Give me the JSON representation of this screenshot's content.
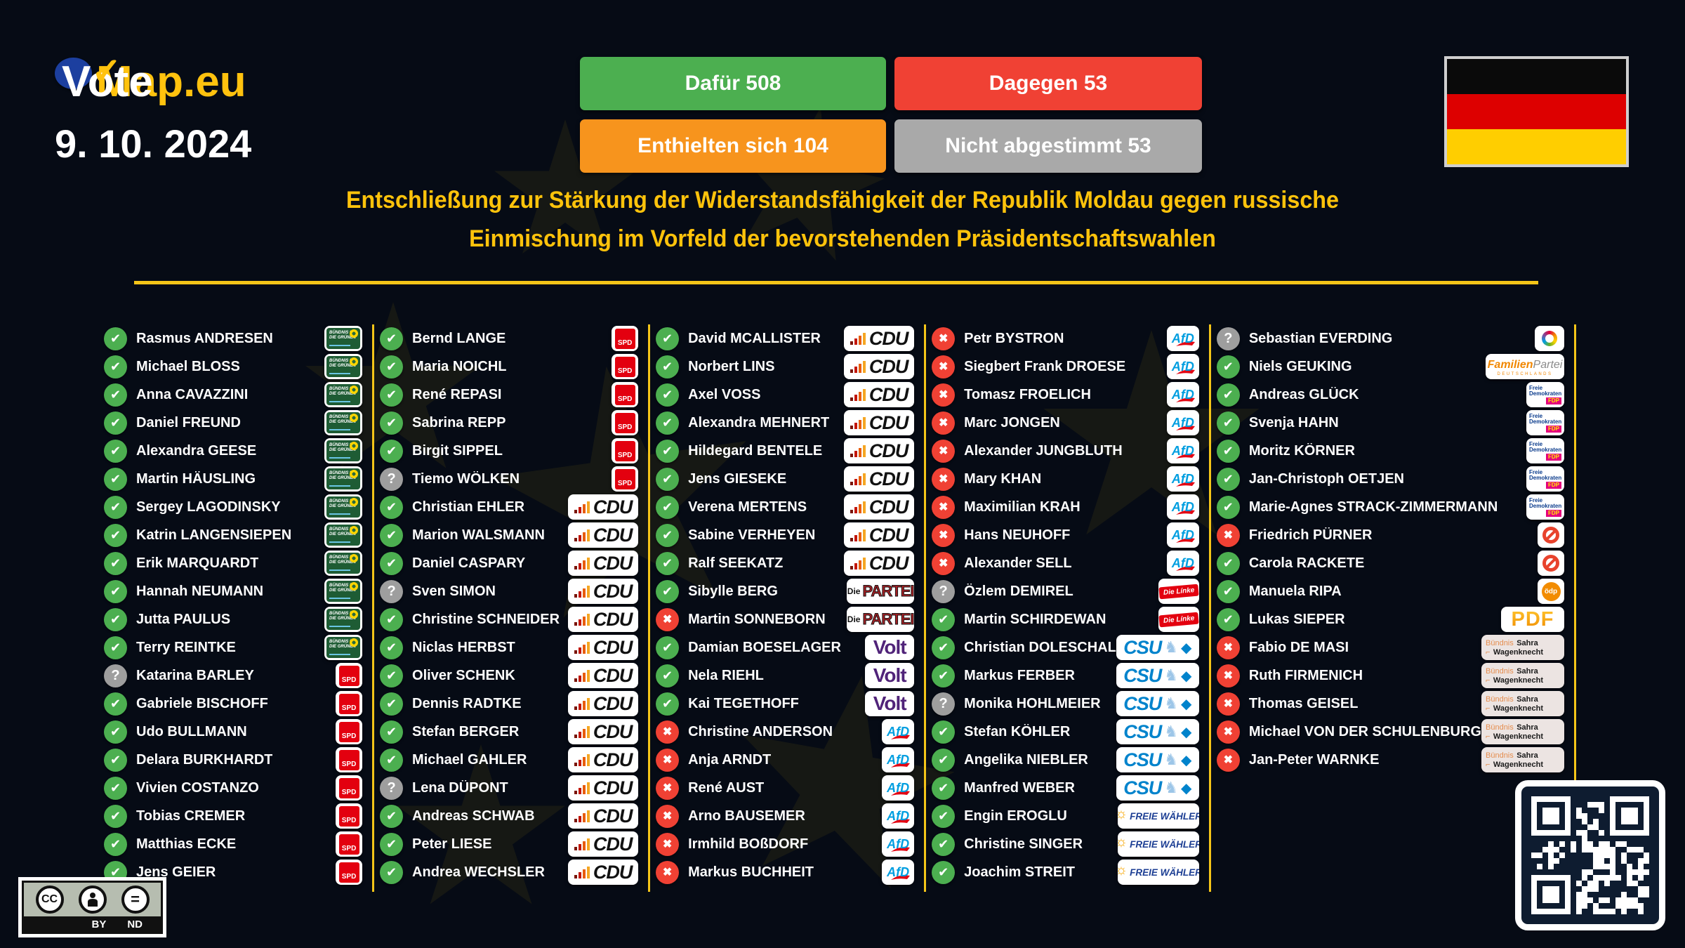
{
  "header": {
    "logo_vote": "Vote",
    "logo_map": "Map.eu",
    "logo_check": "✓",
    "date": "9. 10. 2024",
    "title_line1": "Entschließung zur Stärkung der Widerstandsfähigkeit der Republik Moldau gegen russische",
    "title_line2": "Einmischung im Vorfeld der bevorstehenden Präsidentschaftswahlen",
    "buttons": [
      {
        "id": "for",
        "label": "Dafür 508",
        "color": "#4caf50"
      },
      {
        "id": "against",
        "label": "Dagegen 53",
        "color": "#f04134"
      },
      {
        "id": "abstain",
        "label": "Enthielten sich 104",
        "color": "#f7941d"
      },
      {
        "id": "novote",
        "label": "Nicht abgestimmt 53",
        "color": "#a9a9a9"
      }
    ],
    "flag": {
      "country": "Deutschland",
      "stripes": [
        "#0a0a0a",
        "#dd0000",
        "#ffce00"
      ]
    }
  },
  "vote_icons": {
    "for": "✔",
    "against": "✖",
    "none": "?"
  },
  "parties": {
    "gruene": {
      "name": "Bündnis 90/Die Grünen",
      "line1": "BÜNDNIS 90",
      "line2": "DIE GRÜNEN"
    },
    "spd": {
      "name": "SPD",
      "text": "SPD"
    },
    "cdu": {
      "name": "CDU",
      "text": "CDU"
    },
    "csu": {
      "name": "CSU",
      "text": "CSU",
      "diamond": "◆",
      "lion": "♞"
    },
    "afd": {
      "name": "AfD",
      "text": "AfD"
    },
    "linke": {
      "name": "Die Linke",
      "text": "Die Línke"
    },
    "partei": {
      "name": "Die PARTEI",
      "small": "Die",
      "text": "PARTEI"
    },
    "volt": {
      "name": "Volt",
      "text": "Volt"
    },
    "fw": {
      "name": "Freie Wähler",
      "sun": "☼",
      "text": "FREIE WÄHLER"
    },
    "fdp": {
      "name": "Freie Demokraten / FDP",
      "line1": "Freie",
      "line2": "Demokraten",
      "badge": "FDP"
    },
    "familie": {
      "name": "Familien-Partei Deutschlands",
      "text1": "Familien",
      "text2": "Partei",
      "text3": "DEUTSCHLANDS"
    },
    "tierschutz": {
      "name": "Tierschutzpartei"
    },
    "parteilos": {
      "name": "parteilos"
    },
    "oedp": {
      "name": "ödp",
      "text": "ödp"
    },
    "pdf": {
      "name": "Partei der Fortschritt",
      "text": "PDF"
    },
    "bsw": {
      "name": "Bündnis Sahra Wagenknecht",
      "text1": "Bündnis",
      "text2": "Sahra",
      "text3": "Wagenknecht",
      "mark": "⌐"
    }
  },
  "columns": [
    [
      {
        "name": "Rasmus ANDRESEN",
        "vote": "for",
        "party": "gruene"
      },
      {
        "name": "Michael BLOSS",
        "vote": "for",
        "party": "gruene"
      },
      {
        "name": "Anna CAVAZZINI",
        "vote": "for",
        "party": "gruene"
      },
      {
        "name": "Daniel FREUND",
        "vote": "for",
        "party": "gruene"
      },
      {
        "name": "Alexandra GEESE",
        "vote": "for",
        "party": "gruene"
      },
      {
        "name": "Martin HÄUSLING",
        "vote": "for",
        "party": "gruene"
      },
      {
        "name": "Sergey LAGODINSKY",
        "vote": "for",
        "party": "gruene"
      },
      {
        "name": "Katrin LANGENSIEPEN",
        "vote": "for",
        "party": "gruene"
      },
      {
        "name": "Erik MARQUARDT",
        "vote": "for",
        "party": "gruene"
      },
      {
        "name": "Hannah NEUMANN",
        "vote": "for",
        "party": "gruene"
      },
      {
        "name": "Jutta PAULUS",
        "vote": "for",
        "party": "gruene"
      },
      {
        "name": "Terry REINTKE",
        "vote": "for",
        "party": "gruene"
      },
      {
        "name": "Katarina BARLEY",
        "vote": "none",
        "party": "spd"
      },
      {
        "name": "Gabriele BISCHOFF",
        "vote": "for",
        "party": "spd"
      },
      {
        "name": "Udo BULLMANN",
        "vote": "for",
        "party": "spd"
      },
      {
        "name": "Delara BURKHARDT",
        "vote": "for",
        "party": "spd"
      },
      {
        "name": "Vivien COSTANZO",
        "vote": "for",
        "party": "spd"
      },
      {
        "name": "Tobias CREMER",
        "vote": "for",
        "party": "spd"
      },
      {
        "name": "Matthias ECKE",
        "vote": "for",
        "party": "spd"
      },
      {
        "name": "Jens GEIER",
        "vote": "for",
        "party": "spd"
      }
    ],
    [
      {
        "name": "Bernd LANGE",
        "vote": "for",
        "party": "spd"
      },
      {
        "name": "Maria NOICHL",
        "vote": "for",
        "party": "spd"
      },
      {
        "name": "René REPASI",
        "vote": "for",
        "party": "spd"
      },
      {
        "name": "Sabrina REPP",
        "vote": "for",
        "party": "spd"
      },
      {
        "name": "Birgit SIPPEL",
        "vote": "for",
        "party": "spd"
      },
      {
        "name": "Tiemo WÖLKEN",
        "vote": "none",
        "party": "spd"
      },
      {
        "name": "Christian EHLER",
        "vote": "for",
        "party": "cdu"
      },
      {
        "name": "Marion WALSMANN",
        "vote": "for",
        "party": "cdu"
      },
      {
        "name": "Daniel CASPARY",
        "vote": "for",
        "party": "cdu"
      },
      {
        "name": "Sven SIMON",
        "vote": "none",
        "party": "cdu"
      },
      {
        "name": "Christine SCHNEIDER",
        "vote": "for",
        "party": "cdu"
      },
      {
        "name": "Niclas HERBST",
        "vote": "for",
        "party": "cdu"
      },
      {
        "name": "Oliver SCHENK",
        "vote": "for",
        "party": "cdu"
      },
      {
        "name": "Dennis RADTKE",
        "vote": "for",
        "party": "cdu"
      },
      {
        "name": "Stefan BERGER",
        "vote": "for",
        "party": "cdu"
      },
      {
        "name": "Michael GAHLER",
        "vote": "for",
        "party": "cdu"
      },
      {
        "name": "Lena DÜPONT",
        "vote": "none",
        "party": "cdu"
      },
      {
        "name": "Andreas SCHWAB",
        "vote": "for",
        "party": "cdu"
      },
      {
        "name": "Peter LIESE",
        "vote": "for",
        "party": "cdu"
      },
      {
        "name": "Andrea WECHSLER",
        "vote": "for",
        "party": "cdu"
      }
    ],
    [
      {
        "name": "David MCALLISTER",
        "vote": "for",
        "party": "cdu"
      },
      {
        "name": "Norbert LINS",
        "vote": "for",
        "party": "cdu"
      },
      {
        "name": "Axel VOSS",
        "vote": "for",
        "party": "cdu"
      },
      {
        "name": "Alexandra MEHNERT",
        "vote": "for",
        "party": "cdu"
      },
      {
        "name": "Hildegard BENTELE",
        "vote": "for",
        "party": "cdu"
      },
      {
        "name": "Jens GIESEKE",
        "vote": "for",
        "party": "cdu"
      },
      {
        "name": "Verena MERTENS",
        "vote": "for",
        "party": "cdu"
      },
      {
        "name": "Sabine VERHEYEN",
        "vote": "for",
        "party": "cdu"
      },
      {
        "name": "Ralf SEEKATZ",
        "vote": "for",
        "party": "cdu"
      },
      {
        "name": "Sibylle BERG",
        "vote": "for",
        "party": "partei"
      },
      {
        "name": "Martin SONNEBORN",
        "vote": "against",
        "party": "partei"
      },
      {
        "name": "Damian BOESELAGER",
        "vote": "for",
        "party": "volt"
      },
      {
        "name": "Nela RIEHL",
        "vote": "for",
        "party": "volt"
      },
      {
        "name": "Kai TEGETHOFF",
        "vote": "for",
        "party": "volt"
      },
      {
        "name": "Christine ANDERSON",
        "vote": "against",
        "party": "afd"
      },
      {
        "name": "Anja ARNDT",
        "vote": "against",
        "party": "afd"
      },
      {
        "name": "René AUST",
        "vote": "against",
        "party": "afd"
      },
      {
        "name": "Arno BAUSEMER",
        "vote": "against",
        "party": "afd"
      },
      {
        "name": "Irmhild BOßDORF",
        "vote": "against",
        "party": "afd"
      },
      {
        "name": "Markus BUCHHEIT",
        "vote": "against",
        "party": "afd"
      }
    ],
    [
      {
        "name": "Petr BYSTRON",
        "vote": "against",
        "party": "afd"
      },
      {
        "name": "Siegbert Frank DROESE",
        "vote": "against",
        "party": "afd"
      },
      {
        "name": "Tomasz FROELICH",
        "vote": "against",
        "party": "afd"
      },
      {
        "name": "Marc JONGEN",
        "vote": "against",
        "party": "afd"
      },
      {
        "name": "Alexander JUNGBLUTH",
        "vote": "against",
        "party": "afd"
      },
      {
        "name": "Mary KHAN",
        "vote": "against",
        "party": "afd"
      },
      {
        "name": "Maximilian KRAH",
        "vote": "against",
        "party": "afd"
      },
      {
        "name": "Hans NEUHOFF",
        "vote": "against",
        "party": "afd"
      },
      {
        "name": "Alexander SELL",
        "vote": "against",
        "party": "afd"
      },
      {
        "name": "Özlem DEMIREL",
        "vote": "none",
        "party": "linke"
      },
      {
        "name": "Martin SCHIRDEWAN",
        "vote": "for",
        "party": "linke"
      },
      {
        "name": "Christian DOLESCHAL",
        "vote": "for",
        "party": "csu"
      },
      {
        "name": "Markus FERBER",
        "vote": "for",
        "party": "csu"
      },
      {
        "name": "Monika HOHLMEIER",
        "vote": "none",
        "party": "csu"
      },
      {
        "name": "Stefan KÖHLER",
        "vote": "for",
        "party": "csu"
      },
      {
        "name": "Angelika NIEBLER",
        "vote": "for",
        "party": "csu"
      },
      {
        "name": "Manfred WEBER",
        "vote": "for",
        "party": "csu"
      },
      {
        "name": "Engin EROGLU",
        "vote": "for",
        "party": "fw"
      },
      {
        "name": "Christine SINGER",
        "vote": "for",
        "party": "fw"
      },
      {
        "name": "Joachim STREIT",
        "vote": "for",
        "party": "fw"
      }
    ],
    [
      {
        "name": "Sebastian EVERDING",
        "vote": "none",
        "party": "tierschutz"
      },
      {
        "name": "Niels GEUKING",
        "vote": "for",
        "party": "familie"
      },
      {
        "name": "Andreas GLÜCK",
        "vote": "for",
        "party": "fdp"
      },
      {
        "name": "Svenja HAHN",
        "vote": "for",
        "party": "fdp"
      },
      {
        "name": "Moritz KÖRNER",
        "vote": "for",
        "party": "fdp"
      },
      {
        "name": "Jan-Christoph OETJEN",
        "vote": "for",
        "party": "fdp"
      },
      {
        "name": "Marie-Agnes STRACK-ZIMMERMANN",
        "vote": "for",
        "party": "fdp"
      },
      {
        "name": "Friedrich PÜRNER",
        "vote": "against",
        "party": "parteilos"
      },
      {
        "name": "Carola RACKETE",
        "vote": "for",
        "party": "parteilos"
      },
      {
        "name": "Manuela RIPA",
        "vote": "for",
        "party": "oedp"
      },
      {
        "name": "Lukas SIEPER",
        "vote": "for",
        "party": "pdf"
      },
      {
        "name": "Fabio DE MASI",
        "vote": "against",
        "party": "bsw"
      },
      {
        "name": "Ruth FIRMENICH",
        "vote": "against",
        "party": "bsw"
      },
      {
        "name": "Thomas GEISEL",
        "vote": "against",
        "party": "bsw"
      },
      {
        "name": "Michael VON DER SCHULENBURG",
        "vote": "against",
        "party": "bsw"
      },
      {
        "name": "Jan-Peter WARNKE",
        "vote": "against",
        "party": "bsw"
      }
    ]
  ],
  "footer": {
    "cc": "CC",
    "by": "BY",
    "nd": "ND"
  }
}
